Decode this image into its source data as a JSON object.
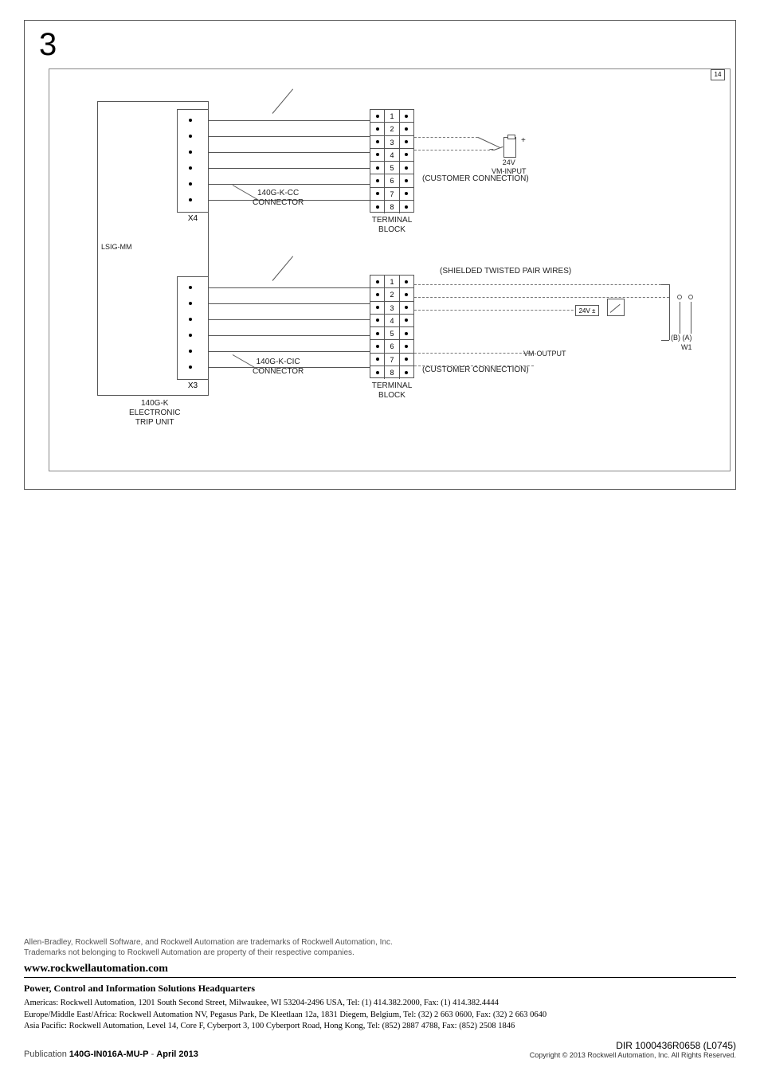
{
  "figure": {
    "step_number": "3",
    "ref_tag": "14",
    "trip_unit_label": "140G-K\nELECTRONIC\nTRIP UNIT",
    "lsig_label": "LSIG-MM",
    "x4_label": "X4",
    "x3_label": "X3",
    "connector_top": "140G-K-CC\nCONNECTOR",
    "connector_bottom": "140G-K-CIC\nCONNECTOR",
    "terminal_block_label": "TERMINAL\nBLOCK",
    "terminal_rows": [
      "1",
      "2",
      "3",
      "4",
      "5",
      "6",
      "7",
      "8"
    ],
    "vm_input_label": "24V\nVM-INPUT",
    "customer_conn": "(CUSTOMER CONNECTION)",
    "shielded_label": "(SHIELDED TWISTED PAIR WIRES)",
    "vm_output_label": "VM-OUTPUT",
    "watt_label": "24V ±",
    "meter_ba": "(B) (A)",
    "meter_w1": "W1",
    "polarity_plus": "+",
    "polarity_minus": "−"
  },
  "footer": {
    "trademark1": "Allen-Bradley, Rockwell Software, and Rockwell Automation are trademarks of Rockwell Automation, Inc.",
    "trademark2": "Trademarks not belonging to Rockwell Automation are property of their respective companies.",
    "website": "www.rockwellautomation.com",
    "hq_title": "Power, Control and Information Solutions Headquarters",
    "addr_americas": "Americas: Rockwell Automation, 1201 South Second Street, Milwaukee, WI 53204-2496 USA, Tel: (1) 414.382.2000, Fax: (1) 414.382.4444",
    "addr_emea": "Europe/Middle East/Africa: Rockwell Automation NV, Pegasus Park, De Kleetlaan 12a, 1831 Diegem, Belgium, Tel: (32) 2 663 0600, Fax: (32) 2 663 0640",
    "addr_ap": "Asia Pacific: Rockwell Automation, Level 14, Core F, Cyberport 3, 100 Cyberport Road, Hong Kong, Tel: (852) 2887 4788, Fax: (852) 2508 1846",
    "pub_prefix": "Publication ",
    "pub_code": "140G-IN016A-MU-P",
    "pub_sep": " - ",
    "pub_date": "April 2013",
    "dir": "DIR 1000436R0658 (L0745)",
    "copyright": "Copyright © 2013 Rockwell Automation, Inc. All Rights Reserved."
  },
  "colors": {
    "border": "#555555",
    "text": "#000000",
    "muted": "#555555",
    "background": "#ffffff"
  }
}
